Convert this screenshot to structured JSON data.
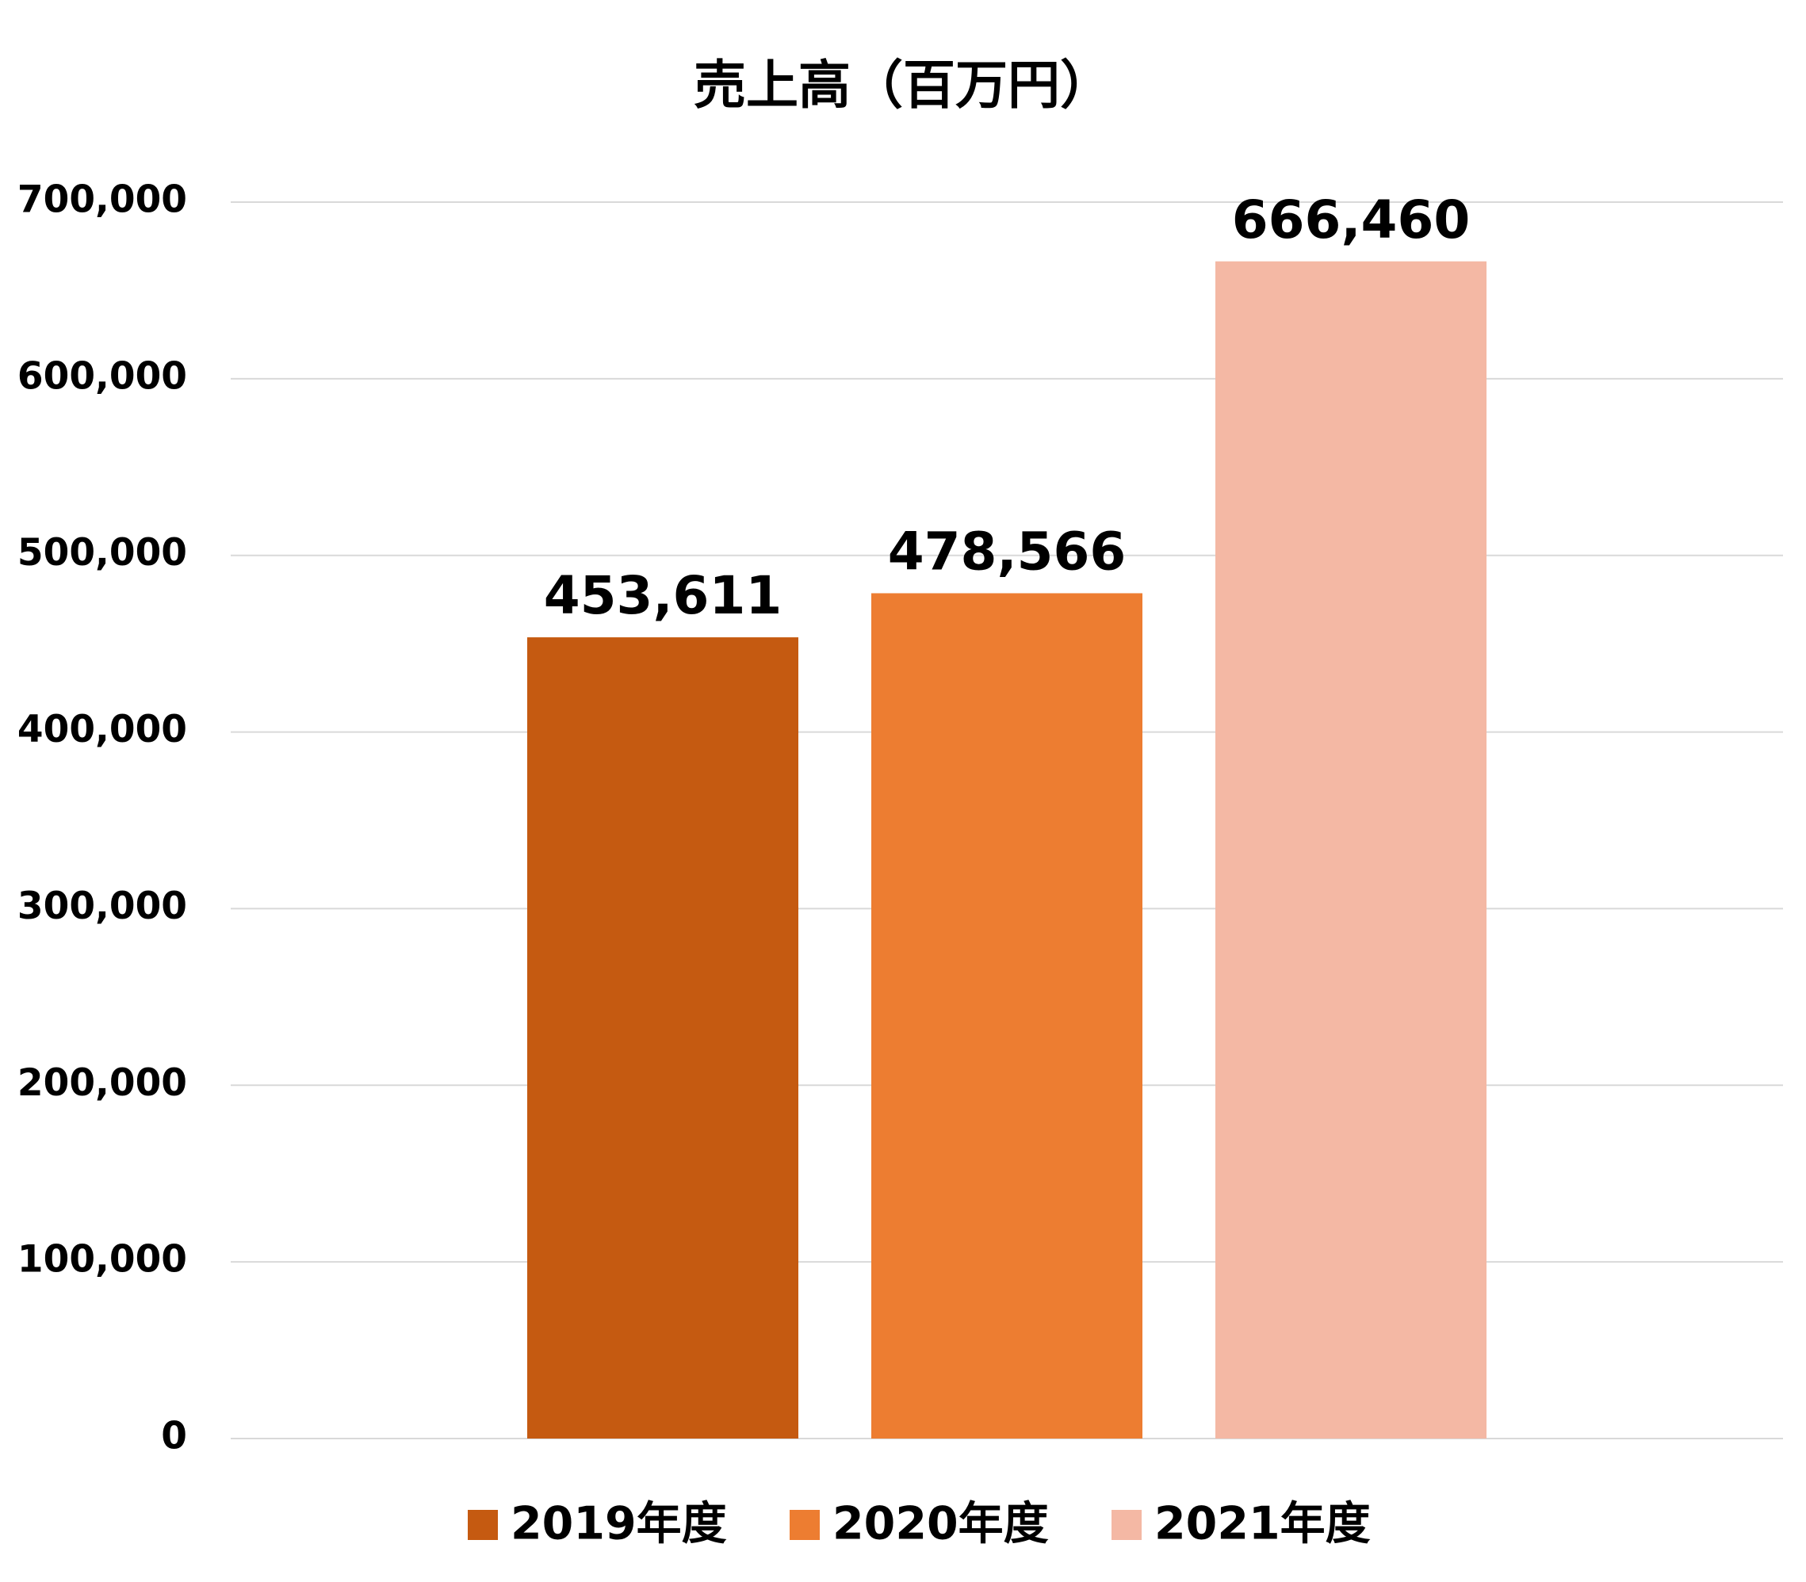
{
  "chart_data": {
    "type": "bar",
    "title": "売上高（百万円）",
    "categories": [
      null
    ],
    "series": [
      {
        "name": "2019年度",
        "color": "#c55a11",
        "values": [
          453611
        ],
        "value_labels": [
          "453,611"
        ]
      },
      {
        "name": "2020年度",
        "color": "#ed7d31",
        "values": [
          478566
        ],
        "value_labels": [
          "478,566"
        ]
      },
      {
        "name": "2021年度",
        "color": "#f4b8a4",
        "values": [
          666460
        ],
        "value_labels": [
          "666,460"
        ]
      }
    ],
    "ylim": [
      0,
      700000
    ],
    "yticks": [
      0,
      {
        "value": 100000,
        "label": "100,000"
      },
      {
        "value": 200000,
        "label": "200,000"
      },
      {
        "value": 300000,
        "label": "300,000"
      },
      {
        "value": 400000,
        "label": "400,000"
      },
      {
        "value": 500000,
        "label": "500,000"
      },
      {
        "value": 600000,
        "label": "600,000"
      },
      {
        "value": 700000,
        "label": "700,000"
      }
    ],
    "grid": true,
    "legend": "bottom"
  }
}
